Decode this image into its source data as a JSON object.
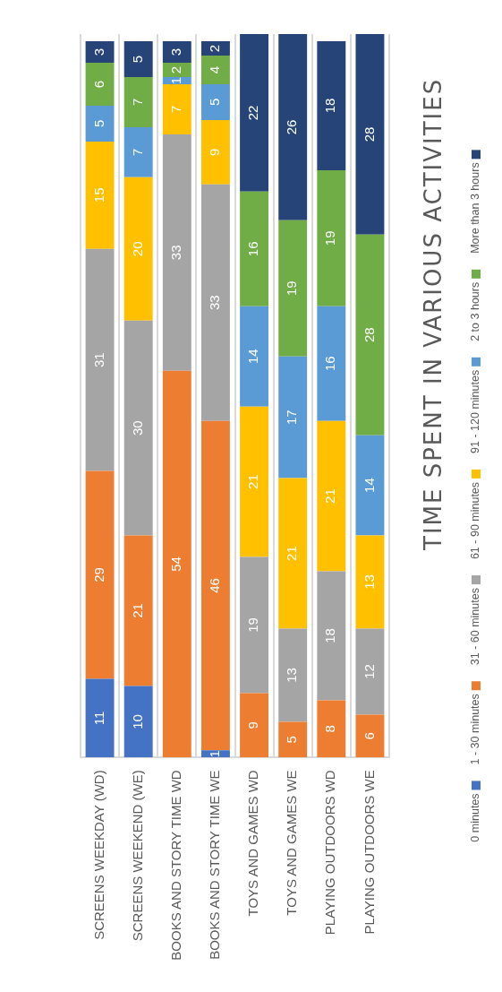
{
  "chart_data": {
    "type": "bar",
    "title": "TIME SPENT IN VARIOUS ACTIVITIES",
    "stacked": true,
    "legend": "right",
    "grid": "x",
    "tick_labels": "x",
    "ylim": [
      0,
      101
    ],
    "categories": [
      "SCREENS WEEKDAY (WD)",
      "SCREENS WEEKEND (WE)",
      "BOOKS AND STORY TIME WD",
      "BOOKS AND STORY TIME WE",
      "TOYS AND GAMES WD",
      "TOYS AND GAMES WE",
      "PLAYING OUTDOORS WD",
      "PLAYING OUTDOORS WE"
    ],
    "series": [
      {
        "name": "0 minutes",
        "color": "#4472c4",
        "values": [
          11,
          10,
          0,
          1,
          0,
          0,
          0,
          0
        ],
        "value_labels": [
          "11",
          "10",
          null,
          "1",
          null,
          null,
          null,
          null
        ]
      },
      {
        "name": "1 - 30 minutes",
        "color": "#ed7d31",
        "values": [
          29,
          21,
          54,
          46,
          9,
          5,
          8,
          6
        ],
        "value_labels": [
          "29",
          "21",
          "54",
          "46",
          "9",
          "5",
          "8",
          "6"
        ]
      },
      {
        "name": "31 - 60 minutes",
        "color": "#a5a5a5",
        "values": [
          31,
          30,
          33,
          33,
          19,
          13,
          18,
          12
        ],
        "value_labels": [
          "31",
          "30",
          "33",
          "33",
          "19",
          "13",
          "18",
          "12"
        ]
      },
      {
        "name": "61 - 90 minutes",
        "color": "#ffc000",
        "values": [
          15,
          20,
          7,
          9,
          21,
          21,
          21,
          13
        ],
        "value_labels": [
          "15",
          "20",
          "7",
          "9",
          "21",
          "21",
          "21",
          "13"
        ]
      },
      {
        "name": "91 - 120 minutes",
        "color": "#5b9bd5",
        "values": [
          5,
          7,
          1,
          5,
          14,
          17,
          16,
          14
        ],
        "value_labels": [
          "5",
          "7",
          "1",
          "5",
          "14",
          "17",
          "16",
          "14"
        ]
      },
      {
        "name": "2 to 3 hours",
        "color": "#70ad47",
        "values": [
          6,
          7,
          2,
          4,
          16,
          19,
          19,
          28
        ],
        "value_labels": [
          "6",
          "7",
          "2",
          "4",
          "16",
          "19",
          "19",
          "28"
        ]
      },
      {
        "name": "More than 3 hours",
        "color": "#264478",
        "values": [
          3,
          5,
          3,
          2,
          22,
          26,
          18,
          28
        ],
        "value_labels": [
          "3",
          "5",
          "3",
          "2",
          "22",
          "26",
          "18",
          "28"
        ]
      }
    ]
  }
}
